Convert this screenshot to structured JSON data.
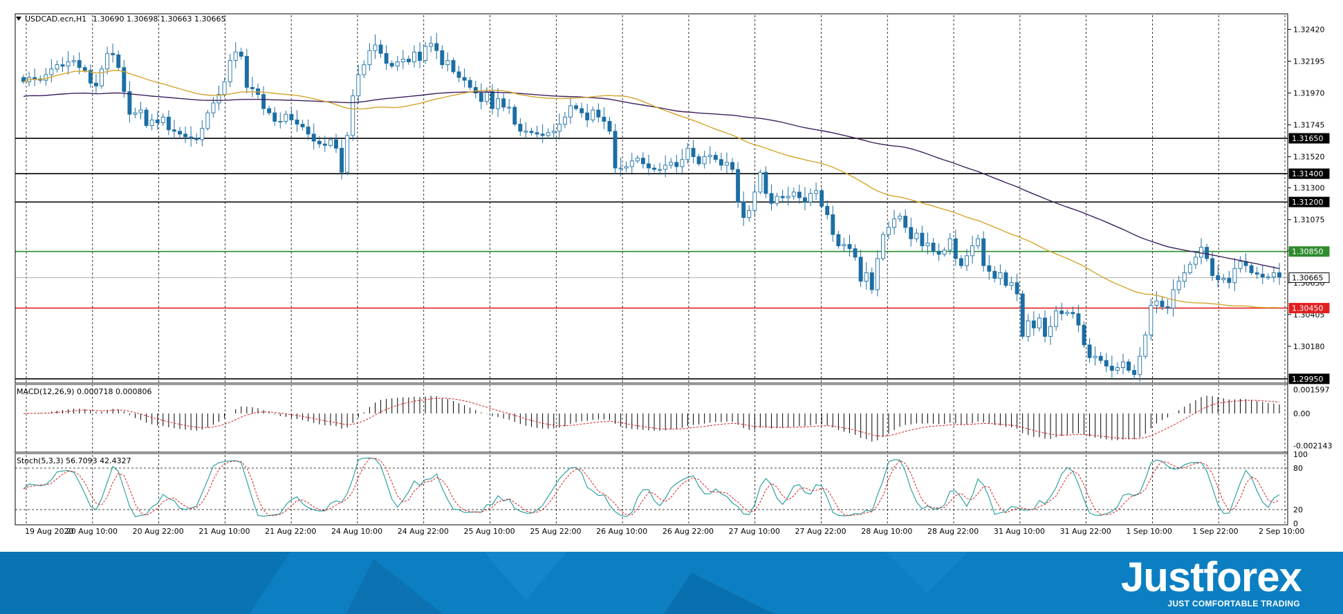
{
  "brand": {
    "name": "Justforex",
    "tagline": "JUST COMFORTABLE TRADING",
    "color": "#0b7fc2",
    "color_dark": "#075a93"
  },
  "chart_data": [
    {
      "type": "candlestick",
      "title": "USDCAD.ecn,H1",
      "ohlc_header": "1.30690 1.30698 1.30663 1.30665",
      "last_price": 1.30665,
      "ylim": [
        1.2993,
        1.3252
      ],
      "y_ticks": [
        "1.32420",
        "1.32195",
        "1.31970",
        "1.31745",
        "1.31520",
        "1.31300",
        "1.31075",
        "1.30855",
        "1.30630",
        "1.30405",
        "1.30180"
      ],
      "x_ticks": [
        "19 Aug 2020",
        "20 Aug 10:00",
        "20 Aug 22:00",
        "21 Aug 10:00",
        "21 Aug 22:00",
        "24 Aug 10:00",
        "24 Aug 22:00",
        "25 Aug 10:00",
        "25 Aug 22:00",
        "26 Aug 10:00",
        "26 Aug 22:00",
        "27 Aug 10:00",
        "27 Aug 22:00",
        "28 Aug 10:00",
        "28 Aug 22:00",
        "31 Aug 10:00",
        "31 Aug 22:00",
        "1 Sep 10:00",
        "1 Sep 22:00",
        "2 Sep 10:00"
      ],
      "grid": "vertical dashed",
      "horizontal_levels": [
        {
          "label": "1.31650",
          "value": 1.3165,
          "color": "#000000"
        },
        {
          "label": "1.31400",
          "value": 1.314,
          "color": "#000000"
        },
        {
          "label": "1.31200",
          "value": 1.312,
          "color": "#000000"
        },
        {
          "label": "1.30850",
          "value": 1.3085,
          "color": "#2e8b2e"
        },
        {
          "label": "1.30665",
          "value": 1.30665,
          "color": "#b0b0b0"
        },
        {
          "label": "1.30450",
          "value": 1.3045,
          "color": "#e02020"
        },
        {
          "label": "1.29950",
          "value": 1.2995,
          "color": "#000000"
        }
      ],
      "colors": {
        "bull": "#ffffff",
        "bull_outline": "#1c6ea4",
        "bear": "#1c6ea4",
        "ma_slow": "#3b1e5e",
        "ma_fast": "#d4a42c"
      },
      "candles_close": [
        1.3205,
        1.3208,
        1.3207,
        1.3206,
        1.321,
        1.3214,
        1.3217,
        1.3216,
        1.3219,
        1.322,
        1.3215,
        1.3213,
        1.3204,
        1.3202,
        1.3214,
        1.3225,
        1.3224,
        1.3215,
        1.3198,
        1.3182,
        1.3183,
        1.3185,
        1.3174,
        1.3178,
        1.3176,
        1.318,
        1.3171,
        1.317,
        1.3168,
        1.3166,
        1.3165,
        1.3164,
        1.3172,
        1.3183,
        1.319,
        1.3196,
        1.3205,
        1.322,
        1.3226,
        1.3223,
        1.3201,
        1.32,
        1.3196,
        1.3186,
        1.3183,
        1.3177,
        1.3177,
        1.3182,
        1.3178,
        1.3175,
        1.3173,
        1.3168,
        1.3163,
        1.3161,
        1.316,
        1.3164,
        1.3158,
        1.3141,
        1.3167,
        1.3195,
        1.321,
        1.3217,
        1.3227,
        1.3231,
        1.3225,
        1.3218,
        1.3216,
        1.3219,
        1.3221,
        1.3219,
        1.3226,
        1.322,
        1.323,
        1.3232,
        1.3227,
        1.3217,
        1.322,
        1.3212,
        1.3208,
        1.3206,
        1.3201,
        1.3197,
        1.3191,
        1.3198,
        1.3186,
        1.3193,
        1.3187,
        1.3187,
        1.3175,
        1.317,
        1.317,
        1.3169,
        1.3168,
        1.3167,
        1.3169,
        1.317,
        1.3175,
        1.318,
        1.3188,
        1.3186,
        1.3183,
        1.3178,
        1.3185,
        1.318,
        1.3177,
        1.317,
        1.3144,
        1.3144,
        1.3145,
        1.3149,
        1.3151,
        1.3147,
        1.3144,
        1.3143,
        1.3143,
        1.3146,
        1.3148,
        1.3145,
        1.315,
        1.3158,
        1.3152,
        1.3147,
        1.3152,
        1.3153,
        1.315,
        1.3146,
        1.3148,
        1.3143,
        1.312,
        1.3109,
        1.3114,
        1.3127,
        1.3141,
        1.3126,
        1.3119,
        1.3124,
        1.3123,
        1.3124,
        1.3127,
        1.3123,
        1.312,
        1.3126,
        1.3128,
        1.3117,
        1.3111,
        1.3097,
        1.3089,
        1.309,
        1.3087,
        1.3081,
        1.3064,
        1.307,
        1.3058,
        1.308,
        1.3097,
        1.3102,
        1.3108,
        1.311,
        1.3102,
        1.3094,
        1.3098,
        1.3089,
        1.3091,
        1.3085,
        1.3083,
        1.3086,
        1.3094,
        1.308,
        1.3075,
        1.3082,
        1.3089,
        1.3094,
        1.3075,
        1.3071,
        1.3066,
        1.307,
        1.3061,
        1.3063,
        1.3055,
        1.3025,
        1.3036,
        1.3031,
        1.3038,
        1.3025,
        1.3032,
        1.3043,
        1.3041,
        1.3042,
        1.3041,
        1.3033,
        1.3019,
        1.301,
        1.3011,
        1.3008,
        1.3004,
        1.3001,
        1.3003,
        1.3007,
        1.3001,
        1.2998,
        1.3011,
        1.3026,
        1.3047,
        1.305,
        1.3046,
        1.3045,
        1.3058,
        1.3064,
        1.307,
        1.3076,
        1.3081,
        1.3088,
        1.308,
        1.3068,
        1.3065,
        1.3066,
        1.3063,
        1.3073,
        1.3078,
        1.3075,
        1.307,
        1.3069,
        1.3067,
        1.3067,
        1.307,
        1.3067
      ]
    },
    {
      "type": "histogram",
      "title": "MACD(12,26,9) 0.000718 0.000806",
      "ylim": [
        -0.0025,
        0.0019
      ],
      "y_ticks": [
        "0.001597",
        "0.00",
        "-0.002143"
      ]
    },
    {
      "type": "line",
      "title": "Stoch(5,3,3) 56.7093 42.4327",
      "ylim": [
        0,
        100
      ],
      "y_ticks": [
        "100",
        "80",
        "20",
        "0"
      ],
      "levels": [
        20,
        80
      ],
      "colors": {
        "main": "#1f9a9a",
        "signal": "#d42020"
      }
    }
  ]
}
